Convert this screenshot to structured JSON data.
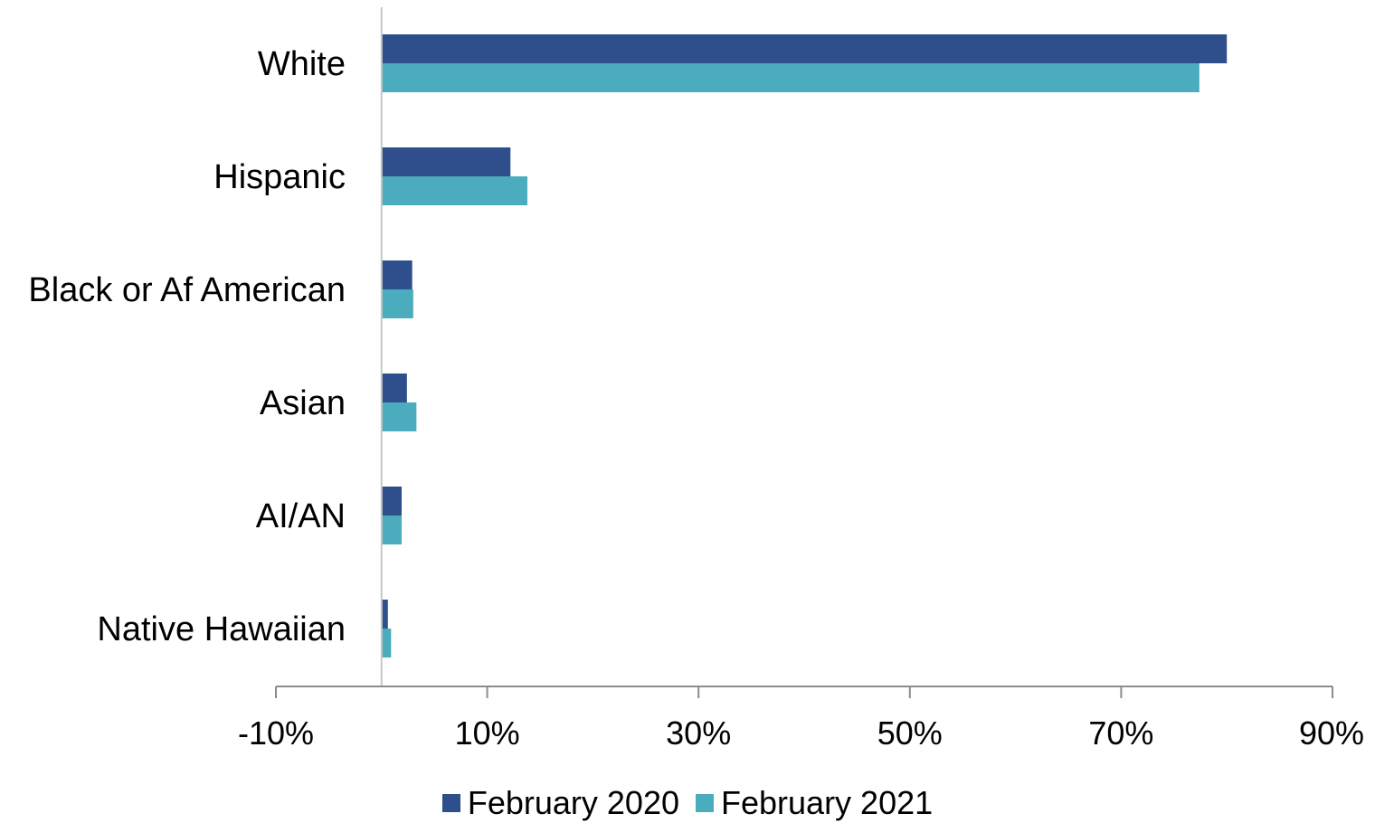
{
  "chart_data": {
    "type": "bar",
    "orientation": "horizontal",
    "categories": [
      "White",
      "Hispanic",
      "Black or Af American",
      "Asian",
      "AI/AN",
      "Native Hawaiian"
    ],
    "series": [
      {
        "name": "February 2020",
        "color": "#2E4F8B",
        "values": [
          80.0,
          12.2,
          2.9,
          2.4,
          1.9,
          0.6
        ]
      },
      {
        "name": "February 2021",
        "color": "#4BACBE",
        "values": [
          77.4,
          13.8,
          3.0,
          3.3,
          1.9,
          0.9
        ]
      }
    ],
    "xlim": [
      -10,
      90
    ],
    "xticks": [
      -10,
      10,
      30,
      50,
      70,
      90
    ],
    "xtick_labels": [
      "-10%",
      "10%",
      "30%",
      "50%",
      "70%",
      "90%"
    ],
    "title": "",
    "xlabel": "",
    "ylabel": "",
    "grid": false,
    "legend_position": "bottom"
  }
}
